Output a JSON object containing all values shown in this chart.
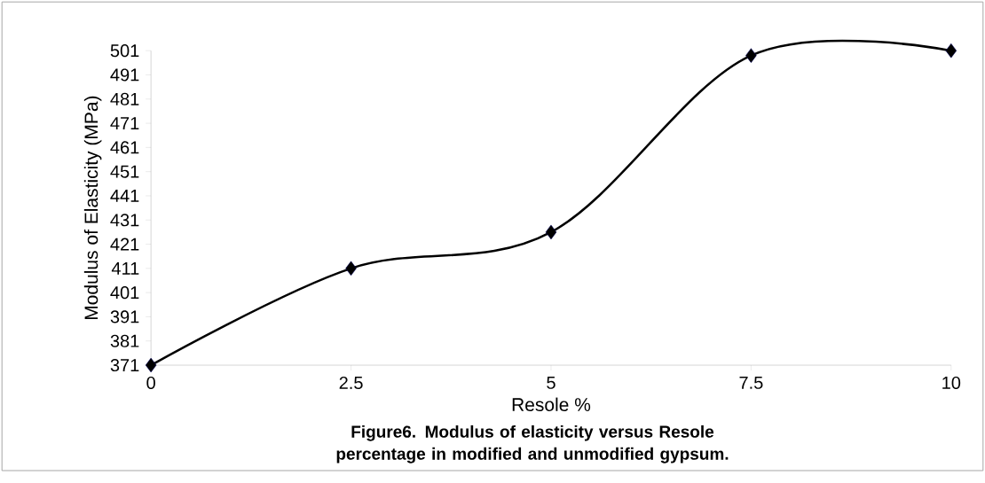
{
  "chart_data": {
    "type": "line",
    "title": "Figure6. Modulus of elasticity versus Resole  percentage in modified and unmodified gypsum.",
    "xlabel": "Resole %",
    "ylabel": "Modulus of Elasticity (MPa)",
    "x": [
      0,
      2.5,
      5,
      7.5,
      10
    ],
    "series": [
      {
        "color": "#000000",
        "values": [
          371,
          411,
          426,
          499,
          501
        ]
      }
    ],
    "xlim": [
      0,
      10
    ],
    "xticks": [
      0,
      2.5,
      5,
      7.5,
      10
    ],
    "ylim": [
      371,
      501
    ],
    "yticks": [
      371,
      381,
      391,
      401,
      411,
      421,
      431,
      441,
      451,
      461,
      471,
      481,
      491,
      501
    ],
    "marker": "diamond",
    "line_style": "solid"
  }
}
